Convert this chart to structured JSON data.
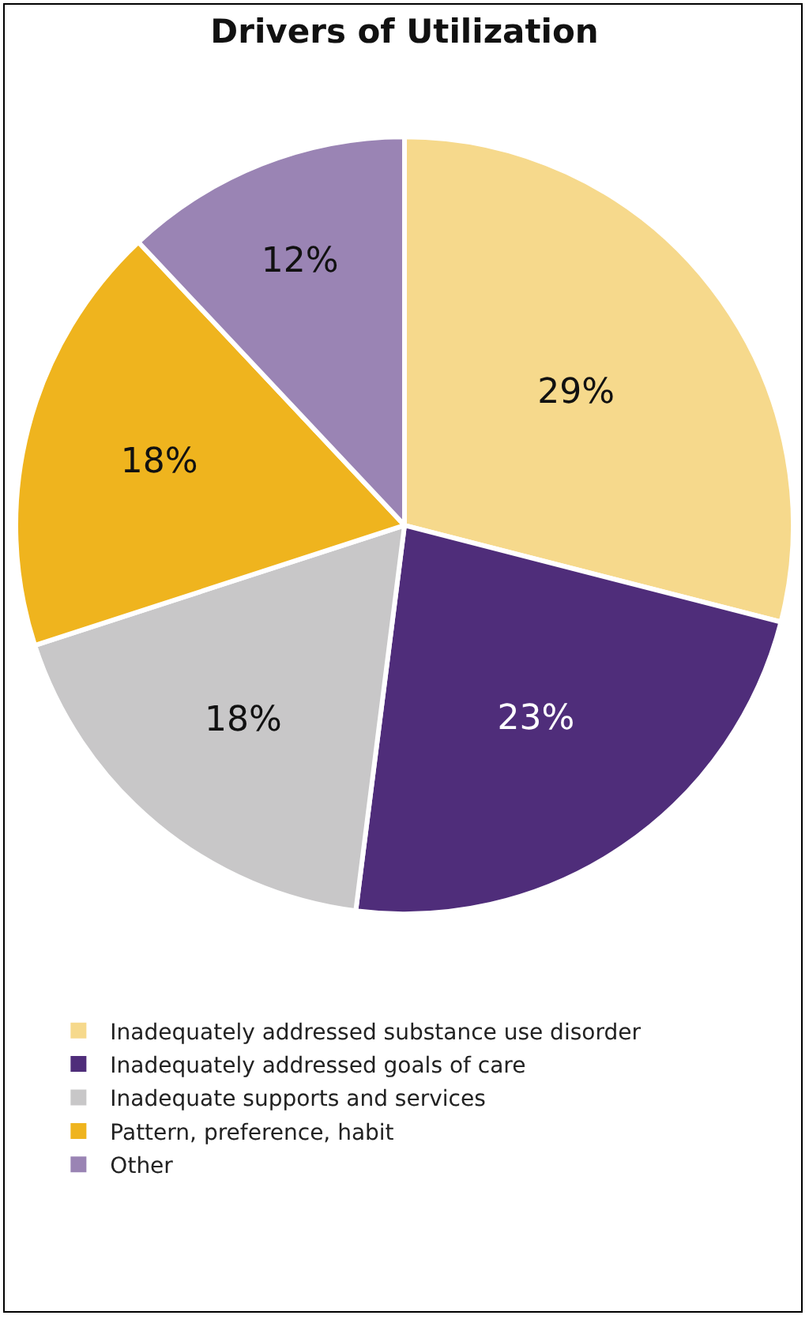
{
  "chart_data": {
    "type": "pie",
    "title": "Drivers of Utilization",
    "categories": [
      "Inadequately addressed substance use disorder",
      "Inadequately addressed goals of care",
      "Inadequate supports and services",
      "Pattern, preference, habit",
      "Other"
    ],
    "values": [
      29,
      23,
      18,
      18,
      12
    ],
    "value_labels": [
      "29%",
      "23%",
      "18%",
      "18%",
      "12%"
    ],
    "colors": [
      "#f6d98c",
      "#4f2d7a",
      "#c8c7c8",
      "#efb41e",
      "#9a84b4"
    ],
    "legend": "bottom"
  }
}
